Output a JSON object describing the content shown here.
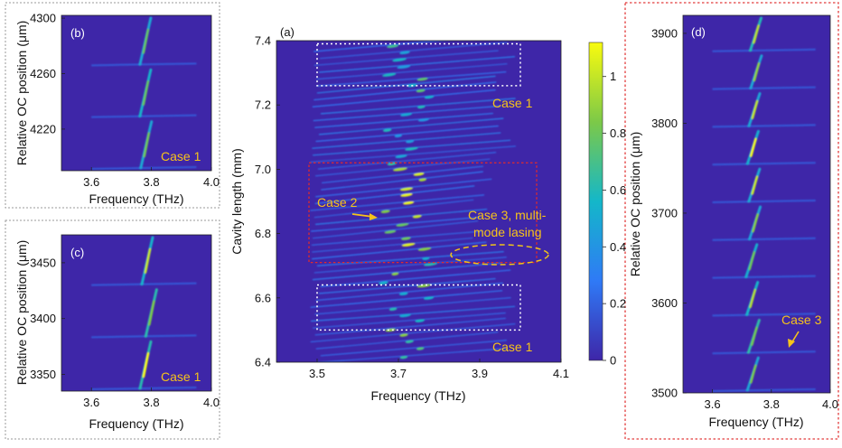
{
  "chart_data": [
    {
      "type": "heatmap",
      "panel_label": "(a)",
      "xlabel": "Frequency (THz)",
      "ylabel": "Cavity length (mm)",
      "xlim": [
        3.4,
        4.1
      ],
      "ylim": [
        6.4,
        7.4
      ],
      "xticks": [
        "3.5",
        "3.7",
        "3.9",
        "4.1"
      ],
      "yticks": [
        "6.4",
        "6.6",
        "6.8",
        "7.0",
        "7.2",
        "7.4"
      ],
      "colorbar": {
        "ticks": [
          "0",
          "0.2",
          "0.4",
          "0.6",
          "0.8",
          "1"
        ],
        "range": [
          0,
          1.12
        ],
        "colors": [
          "#3e26a8",
          "#2f7af6",
          "#14b7c9",
          "#7cc948",
          "#f9fb0e"
        ]
      },
      "annotations": [
        {
          "text": "Case 1",
          "region": "top white box"
        },
        {
          "text": "Case 2",
          "region": "red box, arrow"
        },
        {
          "text": "Case 3, multi-",
          "line2": "mode lasing",
          "region": "yellow ellipse"
        },
        {
          "text": "Case 1",
          "region": "bottom white box"
        }
      ],
      "box_ranges": [
        {
          "kind": "white",
          "x": [
            3.5,
            4.0
          ],
          "y": [
            7.26,
            7.39
          ]
        },
        {
          "kind": "red",
          "x": [
            3.48,
            4.04
          ],
          "y": [
            6.71,
            7.02
          ]
        },
        {
          "kind": "white",
          "x": [
            3.5,
            4.0
          ],
          "y": [
            6.5,
            6.64
          ]
        }
      ]
    },
    {
      "type": "heatmap",
      "panel_label": "(b)",
      "xlabel": "Frequency (THz)",
      "ylabel": "Relative OC position (μm)",
      "xlim": [
        3.5,
        4.0
      ],
      "ylim": [
        4190,
        4302
      ],
      "xticks": [
        "3.6",
        "3.8",
        "4.0"
      ],
      "yticks": [
        "4220",
        "4260",
        "4300"
      ],
      "annotations": [
        {
          "text": "Case 1"
        }
      ]
    },
    {
      "type": "heatmap",
      "panel_label": "(c)",
      "xlabel": "Frequency (THz)",
      "ylabel": "Relative OC position (μm)",
      "xlim": [
        3.5,
        4.0
      ],
      "ylim": [
        3335,
        3475
      ],
      "xticks": [
        "3.6",
        "3.8",
        "4.0"
      ],
      "yticks": [
        "3350",
        "3400",
        "3450"
      ],
      "annotations": [
        {
          "text": "Case 1"
        }
      ]
    },
    {
      "type": "heatmap",
      "panel_label": "(d)",
      "xlabel": "Frequency (THz)",
      "ylabel": "Relative OC position (μm)",
      "xlim": [
        3.5,
        4.0
      ],
      "ylim": [
        3500,
        3920
      ],
      "xticks": [
        "3.6",
        "3.8",
        "4.0"
      ],
      "yticks": [
        "3500",
        "3600",
        "3700",
        "3800",
        "3900"
      ],
      "annotations": [
        {
          "text": "Case 3"
        }
      ]
    }
  ]
}
